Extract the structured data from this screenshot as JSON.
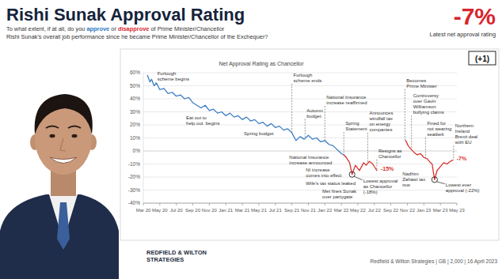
{
  "chart_data": {
    "type": "line",
    "title": "Rishi Sunak Approval Rating",
    "subtitle": [
      [
        {
          "text": "To what extent, if at all, do you "
        },
        {
          "text": "approve",
          "color": "#2b78c2"
        },
        {
          "text": " or "
        },
        {
          "text": "disapprove",
          "color": "#d7262e"
        },
        {
          "text": " of Prime Minister/Chancellor"
        }
      ],
      [
        {
          "text": "Rishi Sunak's overall job performance since he became Prime Minister/Chancellor of the Exchequer?"
        }
      ]
    ],
    "headline": "-7%",
    "headline_caption": "Latest net approval rating",
    "change": "(+1)",
    "plot_title": "Net Approval Rating as Chancellor",
    "logo": [
      "REDFIELD & WILTON",
      "STRATEGIES"
    ],
    "source": "Redfield & Wilton Strategies | GB | 2,000 | 16 April 2023",
    "grid": true,
    "xlim": [
      0,
      38
    ],
    "xticks": [
      {
        "value": 0,
        "label": "Mar 20"
      },
      {
        "value": 2,
        "label": "May 20"
      },
      {
        "value": 4,
        "label": "Jul 20"
      },
      {
        "value": 6,
        "label": "Sep 20"
      },
      {
        "value": 8,
        "label": "Nov 20"
      },
      {
        "value": 10,
        "label": "Jan 21"
      },
      {
        "value": 12,
        "label": "Mar 21"
      },
      {
        "value": 14,
        "label": "May 21"
      },
      {
        "value": 16,
        "label": "Jul 21"
      },
      {
        "value": 18,
        "label": "Sep 21"
      },
      {
        "value": 20,
        "label": "Nov 21"
      },
      {
        "value": 22,
        "label": "Jan 22"
      },
      {
        "value": 24,
        "label": "Mar 22"
      },
      {
        "value": 26,
        "label": "May 22"
      },
      {
        "value": 28,
        "label": "Jul 22"
      },
      {
        "value": 30,
        "label": "Sep 22"
      },
      {
        "value": 32,
        "label": "Nov 22"
      },
      {
        "value": 34,
        "label": "Jan 23"
      },
      {
        "value": 36,
        "label": "Mar 23"
      },
      {
        "value": 38,
        "label": "May 23"
      }
    ],
    "ylim": [
      -40,
      60
    ],
    "yticks": [
      {
        "value": 60,
        "label": "60%"
      },
      {
        "value": 50,
        "label": "50%"
      },
      {
        "value": 40,
        "label": "40%"
      },
      {
        "value": 30,
        "label": "30%"
      },
      {
        "value": 20,
        "label": "20%"
      },
      {
        "value": 10,
        "label": "10%"
      },
      {
        "value": 0,
        "label": "0%"
      },
      {
        "value": -10,
        "label": "-10%"
      },
      {
        "value": -20,
        "label": "-20%"
      },
      {
        "value": -30,
        "label": "-30%"
      },
      {
        "value": -40,
        "label": "-40%"
      }
    ],
    "x": [
      0.5,
      0.8,
      1.0,
      1.3,
      1.6,
      2.0,
      2.5,
      3.0,
      3.5,
      4.0,
      4.5,
      5.0,
      5.5,
      6.0,
      6.5,
      7.0,
      7.5,
      8.0,
      8.5,
      9.0,
      9.5,
      10.0,
      10.5,
      11.0,
      11.5,
      12.0,
      12.5,
      13.0,
      13.5,
      14.0,
      14.5,
      15.0,
      15.5,
      16.0,
      16.5,
      17.0,
      17.5,
      18.0,
      18.5,
      19.0,
      19.5,
      20.0,
      20.5,
      21.0,
      21.5,
      22.0,
      22.5,
      23.0,
      23.5,
      24.0,
      24.3,
      24.6,
      25.0,
      25.3,
      25.7,
      26.2,
      26.7,
      27.0,
      27.4,
      27.8,
      28.3,
      30.0,
      31.8,
      32.1,
      32.5,
      32.8,
      33.2,
      33.6,
      34.0,
      34.4,
      34.8,
      35.0,
      35.3,
      35.6,
      36.0,
      36.4,
      36.8,
      37.2,
      37.5
    ],
    "series": [
      {
        "color": "#3b7dc4",
        "values": [
          58,
          53,
          55,
          50,
          52,
          47,
          48,
          44,
          45,
          42,
          43,
          40,
          41,
          37,
          35,
          33,
          35,
          31,
          32,
          29,
          30,
          27,
          29,
          26,
          27,
          24,
          26,
          23,
          24,
          21,
          22,
          19,
          21,
          18,
          19,
          16,
          17,
          14,
          8,
          11,
          9,
          12,
          9,
          10,
          7,
          8,
          5,
          4,
          1,
          -2,
          -3,
          null,
          null,
          null,
          null,
          null,
          null,
          null,
          null,
          null,
          null,
          null,
          null,
          null,
          null,
          null,
          null,
          null,
          null,
          null,
          null,
          null,
          null,
          null,
          null,
          null,
          null,
          null,
          null
        ]
      },
      {
        "color": "#d9302c",
        "values": [
          null,
          null,
          null,
          null,
          null,
          null,
          null,
          null,
          null,
          null,
          null,
          null,
          null,
          null,
          null,
          null,
          null,
          null,
          null,
          null,
          null,
          null,
          null,
          null,
          null,
          null,
          null,
          null,
          null,
          null,
          null,
          null,
          null,
          null,
          null,
          null,
          null,
          null,
          null,
          null,
          null,
          null,
          null,
          null,
          null,
          null,
          null,
          null,
          null,
          null,
          -3,
          -5,
          -9,
          -18,
          -11,
          -15,
          -9,
          -11,
          -8,
          -10,
          -15,
          null,
          8,
          4,
          1,
          -1,
          -3,
          -2,
          -5,
          -6,
          -9,
          -10,
          -22,
          -15,
          -12,
          -9,
          -10,
          -8,
          -7
        ]
      }
    ],
    "annotations": [
      {
        "text": "Furlough\nscheme begins",
        "x": 1.5,
        "y": 58
      },
      {
        "text": "Eat out to\nhelp out  begins",
        "x": 5,
        "y": 24
      },
      {
        "text": "Spring budget",
        "x": 12,
        "y": 12
      },
      {
        "text": "Furlough\nscheme ends",
        "x": 18,
        "y": 57
      },
      {
        "text": "Autumn\nbudget",
        "x": 19.6,
        "y": 30
      },
      {
        "text": "National Insurance\nincrease announced",
        "x": 17.5,
        "y": -6
      },
      {
        "text": "National Insurance\nincrease reaffirmed",
        "x": 22,
        "y": 40
      },
      {
        "text": "NI increase\ncomes into effect",
        "x": 19.5,
        "y": -16
      },
      {
        "text": "Wife's tax status leaked",
        "x": 19.5,
        "y": -26
      },
      {
        "text": "Met fines Sunak\nover partygate",
        "x": 21.5,
        "y": -32
      },
      {
        "text": "Spring\nStatement",
        "x": 24.3,
        "y": 20
      },
      {
        "text": "Lowest approval\nas Chancellor\n(-18%)",
        "x": 25.3,
        "y": -24,
        "marker": "circle"
      },
      {
        "text": "Announces\nwindfall tax\non energy\ncompanies",
        "x": 27.2,
        "y": 28
      },
      {
        "text": "-15%",
        "x": 28.3,
        "y": -15,
        "color": "#d9302c"
      },
      {
        "text": "Resigns as\nChancellor",
        "x": 28.3,
        "y": -1
      },
      {
        "text": "Becomes\nPrime Minister",
        "x": 31.7,
        "y": 53
      },
      {
        "text": "Controversy\nover Gavin\nWilliamson\nbullying claims",
        "x": 32.5,
        "y": 41
      },
      {
        "text": "Fined for\nnot wearing\nseatbelt",
        "x": 34.2,
        "y": 20
      },
      {
        "text": "Nadhim\nZahawi tax\nrow",
        "x": 31.2,
        "y": -19
      },
      {
        "text": "Lowest ever\napproval (-22%)",
        "x": 35.3,
        "y": -27,
        "marker": "circle"
      },
      {
        "text": "Northern\nIreland\nBrexit deal\nwith EU",
        "x": 37.6,
        "y": 18
      },
      {
        "text": "-7%",
        "x": 37.5,
        "y": -7,
        "color": "#d9302c"
      }
    ]
  }
}
